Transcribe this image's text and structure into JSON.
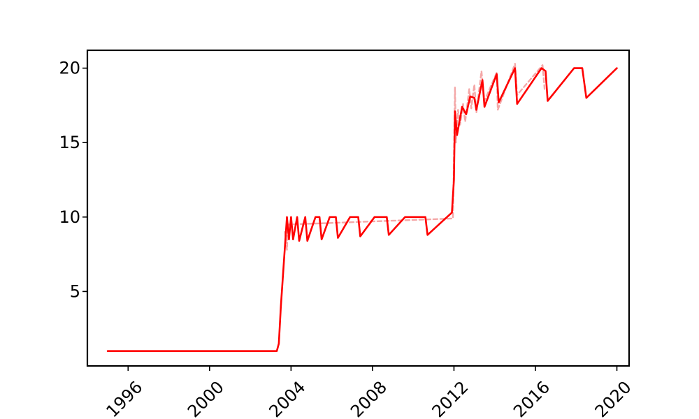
{
  "chart_data": {
    "type": "line",
    "title": "",
    "xlabel": "",
    "ylabel": "",
    "xlim": [
      1994.0,
      2020.6
    ],
    "ylim": [
      0,
      21.2
    ],
    "grid": false,
    "legend": "none",
    "x_ticks": [
      1996,
      2000,
      2004,
      2008,
      2012,
      2016,
      2020
    ],
    "x_tick_labels": [
      "1996",
      "2000",
      "2004",
      "2008",
      "2012",
      "2016",
      "2020"
    ],
    "y_ticks": [
      5,
      10,
      15,
      20
    ],
    "y_tick_labels": [
      "5",
      "10",
      "15",
      "20"
    ],
    "series": [
      {
        "color": "#ff0000",
        "style": "solid",
        "points": [
          [
            1995.0,
            1.0
          ],
          [
            2003.3,
            1.0
          ],
          [
            2003.4,
            1.5
          ],
          [
            2003.5,
            4.0
          ],
          [
            2003.8,
            10.0
          ],
          [
            2003.9,
            8.5
          ],
          [
            2004.0,
            10.0
          ],
          [
            2004.1,
            8.5
          ],
          [
            2004.3,
            10.0
          ],
          [
            2004.4,
            8.4
          ],
          [
            2004.7,
            10.0
          ],
          [
            2004.8,
            8.4
          ],
          [
            2005.2,
            10.0
          ],
          [
            2005.4,
            10.0
          ],
          [
            2005.5,
            8.5
          ],
          [
            2005.9,
            10.0
          ],
          [
            2006.2,
            10.0
          ],
          [
            2006.3,
            8.6
          ],
          [
            2006.9,
            10.0
          ],
          [
            2007.3,
            10.0
          ],
          [
            2007.4,
            8.7
          ],
          [
            2008.1,
            10.0
          ],
          [
            2008.7,
            10.0
          ],
          [
            2008.8,
            8.8
          ],
          [
            2009.6,
            10.0
          ],
          [
            2010.6,
            10.0
          ],
          [
            2010.7,
            8.8
          ],
          [
            2011.9,
            10.3
          ],
          [
            2012.0,
            12.5
          ],
          [
            2012.05,
            17.1
          ],
          [
            2012.15,
            15.5
          ],
          [
            2012.4,
            17.4
          ],
          [
            2012.6,
            16.9
          ],
          [
            2012.8,
            18.1
          ],
          [
            2013.0,
            18.0
          ],
          [
            2013.1,
            17.2
          ],
          [
            2013.4,
            19.2
          ],
          [
            2013.5,
            17.4
          ],
          [
            2014.1,
            19.6
          ],
          [
            2014.2,
            17.7
          ],
          [
            2015.0,
            20.0
          ],
          [
            2015.1,
            17.6
          ],
          [
            2016.3,
            20.0
          ],
          [
            2016.5,
            19.8
          ],
          [
            2016.6,
            17.8
          ],
          [
            2017.9,
            20.0
          ],
          [
            2018.3,
            20.0
          ],
          [
            2018.5,
            18.0
          ],
          [
            2020.0,
            20.0
          ]
        ]
      },
      {
        "color": "#f4a8a8",
        "style": "dashed",
        "points": [
          [
            2003.7,
            9.0
          ],
          [
            2003.8,
            7.8
          ],
          [
            2003.85,
            9.5
          ],
          [
            2011.95,
            9.9
          ],
          [
            2012.05,
            18.7
          ],
          [
            2012.1,
            15.0
          ],
          [
            2012.2,
            17.2
          ],
          [
            2012.3,
            16.2
          ],
          [
            2012.45,
            17.6
          ],
          [
            2012.55,
            16.4
          ],
          [
            2012.75,
            18.6
          ],
          [
            2012.85,
            17.3
          ],
          [
            2013.0,
            18.9
          ],
          [
            2013.1,
            17.0
          ],
          [
            2013.35,
            19.8
          ],
          [
            2013.5,
            17.8
          ],
          [
            2014.1,
            19.7
          ],
          [
            2014.15,
            17.2
          ],
          [
            2015.0,
            20.3
          ],
          [
            2015.1,
            18.2
          ],
          [
            2016.35,
            20.2
          ],
          [
            2016.45,
            18.6
          ]
        ]
      }
    ]
  }
}
